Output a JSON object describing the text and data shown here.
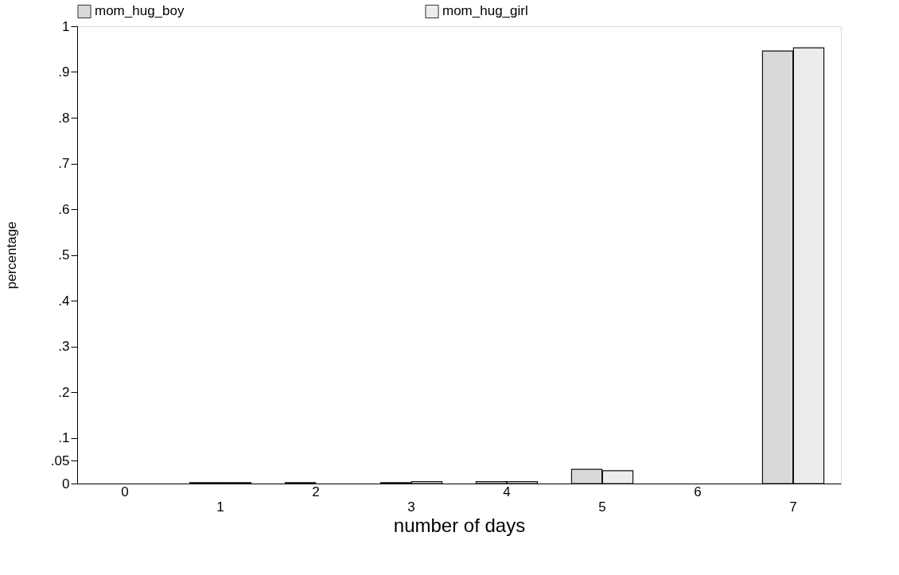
{
  "chart_data": {
    "type": "bar",
    "xlabel": "number of days",
    "ylabel": "percentage",
    "categories": [
      "0",
      "1",
      "2",
      "3",
      "4",
      "5",
      "6",
      "7"
    ],
    "series": [
      {
        "name": "mom_hug_boy",
        "color": "#d9d9d9",
        "values": [
          0,
          0.002,
          0.002,
          0.002,
          0.004,
          0.031,
          0,
          0.946
        ]
      },
      {
        "name": "mom_hug_girl",
        "color": "#ececec",
        "values": [
          0,
          0.002,
          0,
          0.004,
          0.004,
          0.028,
          0,
          0.953
        ]
      }
    ],
    "ylim": [
      0,
      1
    ],
    "yticks": [
      0,
      {
        "value": 0.05,
        "label": ".05"
      },
      {
        "value": 0.1,
        "label": ".1"
      },
      {
        "value": 0.2,
        "label": ".2"
      },
      {
        "value": 0.3,
        "label": ".3"
      },
      {
        "value": 0.4,
        "label": ".4"
      },
      {
        "value": 0.5,
        "label": ".5"
      },
      {
        "value": 0.6,
        "label": ".6"
      },
      {
        "value": 0.7,
        "label": ".7"
      },
      {
        "value": 0.8,
        "label": ".8"
      },
      {
        "value": 0.9,
        "label": ".9"
      },
      1
    ],
    "grid": false,
    "legend": "top"
  }
}
